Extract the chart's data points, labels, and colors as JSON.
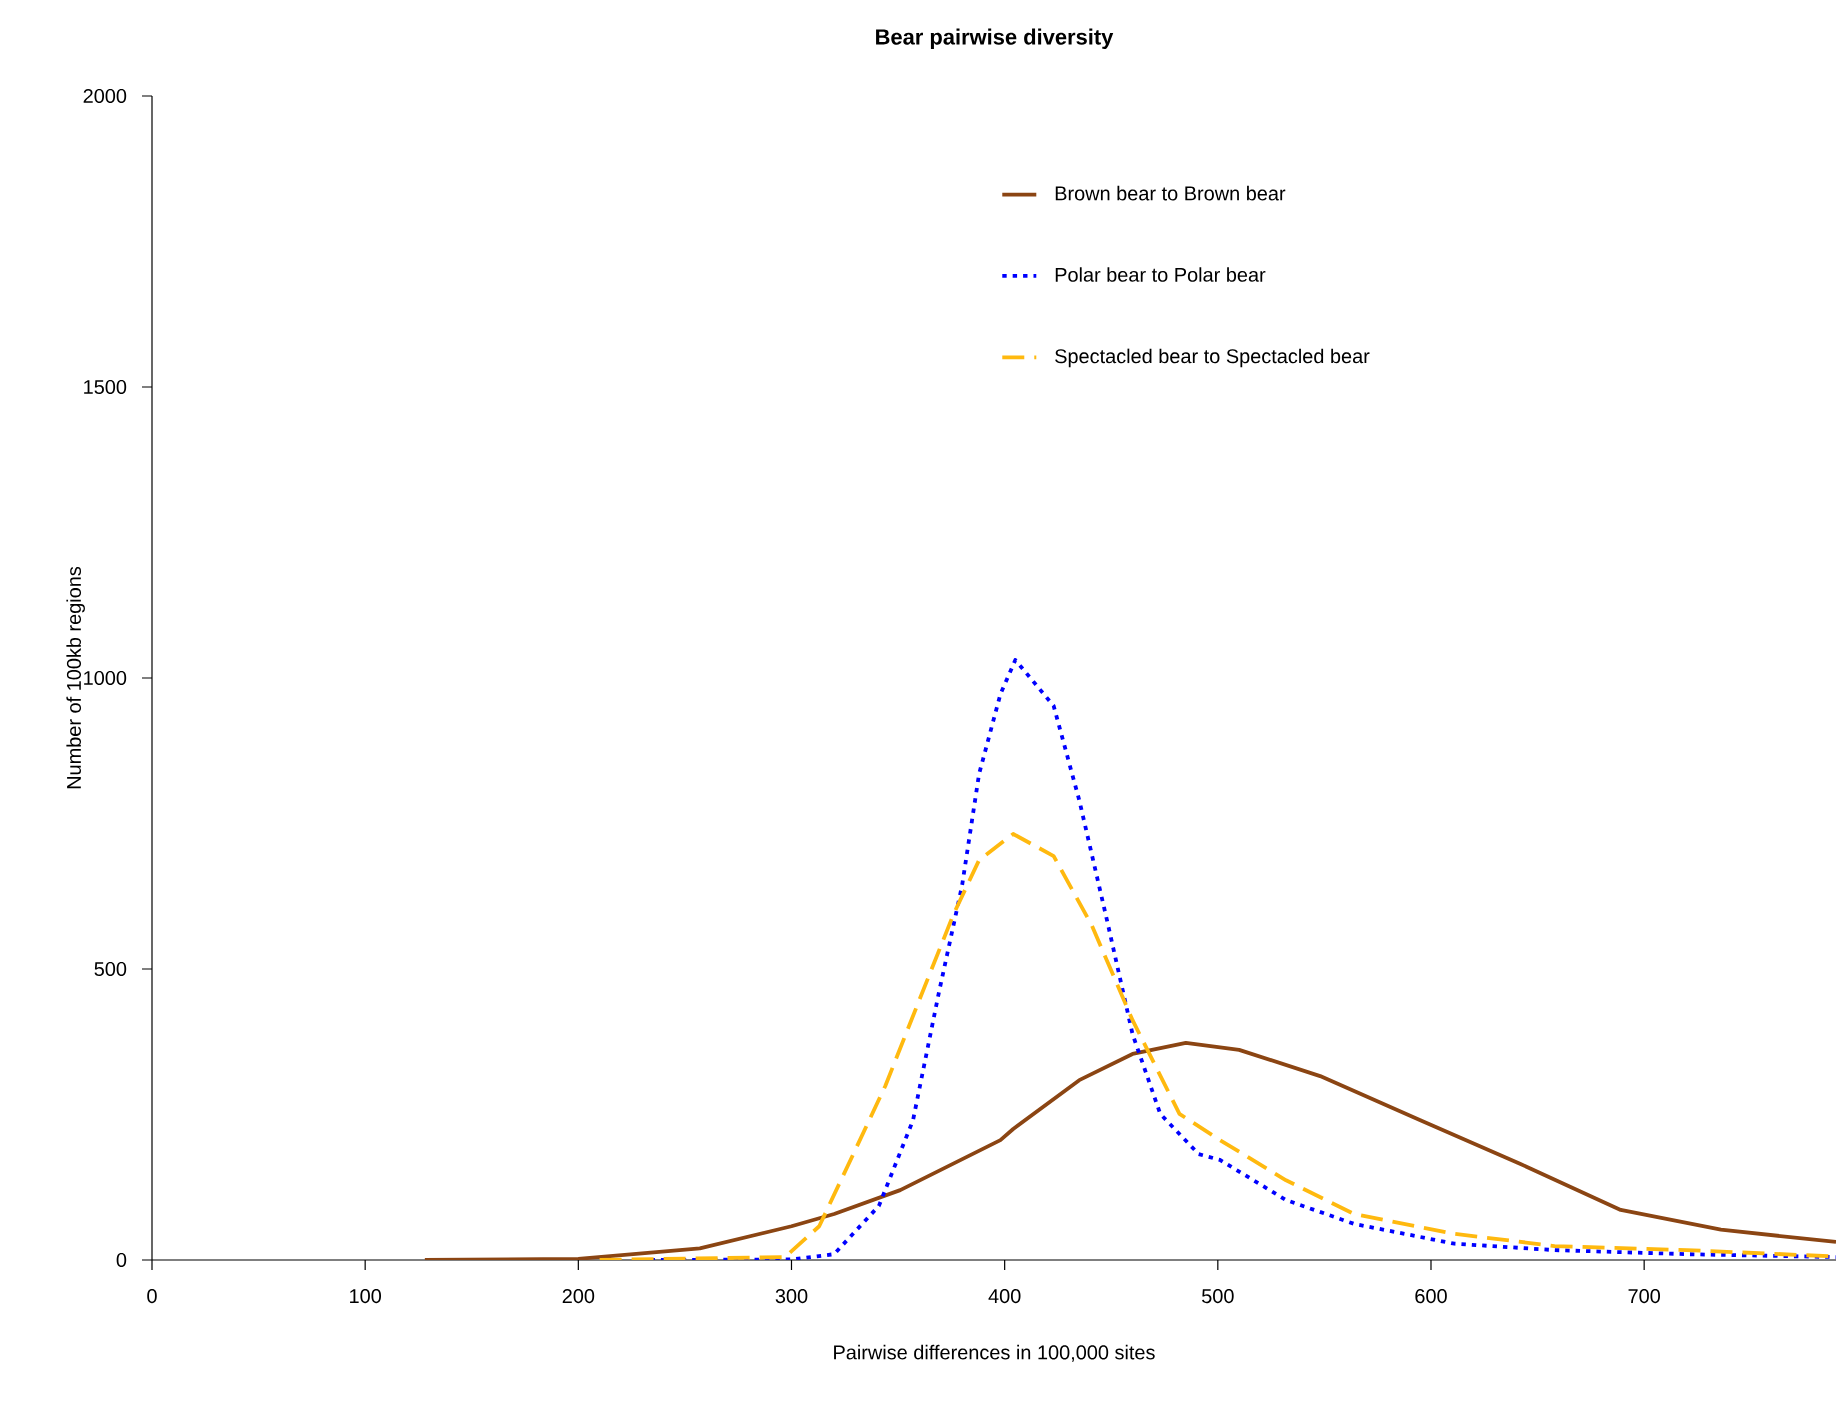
{
  "chart_data": {
    "type": "line",
    "title": "Bear pairwise diversity",
    "xlabel": "Pairwise differences in 100,000 sites",
    "ylabel": "Number of 100kb regions",
    "xlim": [
      0,
      790
    ],
    "ylim": [
      0,
      2000
    ],
    "xticks": [
      0,
      100,
      200,
      300,
      400,
      500,
      600,
      700
    ],
    "yticks": [
      0,
      500,
      1000,
      1500,
      2000
    ],
    "legend": "top right",
    "grid": false,
    "marker": "none",
    "series": [
      {
        "name": "Brown bear to Brown bear",
        "color": "#8b4513",
        "line_style": "solid",
        "x": [
          128,
          200,
          257,
          300,
          320,
          351,
          398,
          404,
          435,
          460,
          485,
          510,
          548,
          595,
          642,
          689,
          736,
          790
        ],
        "values": [
          0,
          2,
          20,
          58,
          79,
          120,
          206,
          225,
          309,
          354,
          373,
          361,
          316,
          240,
          165,
          86,
          52,
          31
        ]
      },
      {
        "name": "Polar bear to Polar bear",
        "color": "#0000ff",
        "line_style": "dotted",
        "x": [
          229,
          300,
          320,
          341,
          357,
          369,
          380,
          388,
          398,
          405,
          423,
          435,
          448,
          460,
          473,
          491,
          501,
          532,
          564,
          611,
          658,
          720,
          790
        ],
        "values": [
          0,
          1,
          10,
          93,
          240,
          457,
          643,
          835,
          972,
          1031,
          952,
          790,
          584,
          388,
          251,
          182,
          172,
          103,
          62,
          28,
          17,
          10,
          5
        ]
      },
      {
        "name": "Spectacled bear to Spectacled bear",
        "color": "#ffb90f",
        "line_style": "dashed",
        "x": [
          210,
          297,
          313,
          329,
          344,
          360,
          376,
          388,
          404,
          423,
          441,
          460,
          482,
          501,
          532,
          564,
          611,
          658,
          720,
          790
        ],
        "values": [
          0,
          5,
          58,
          182,
          299,
          447,
          594,
          687,
          732,
          694,
          574,
          412,
          251,
          206,
          137,
          79,
          45,
          24,
          17,
          6
        ]
      }
    ]
  }
}
